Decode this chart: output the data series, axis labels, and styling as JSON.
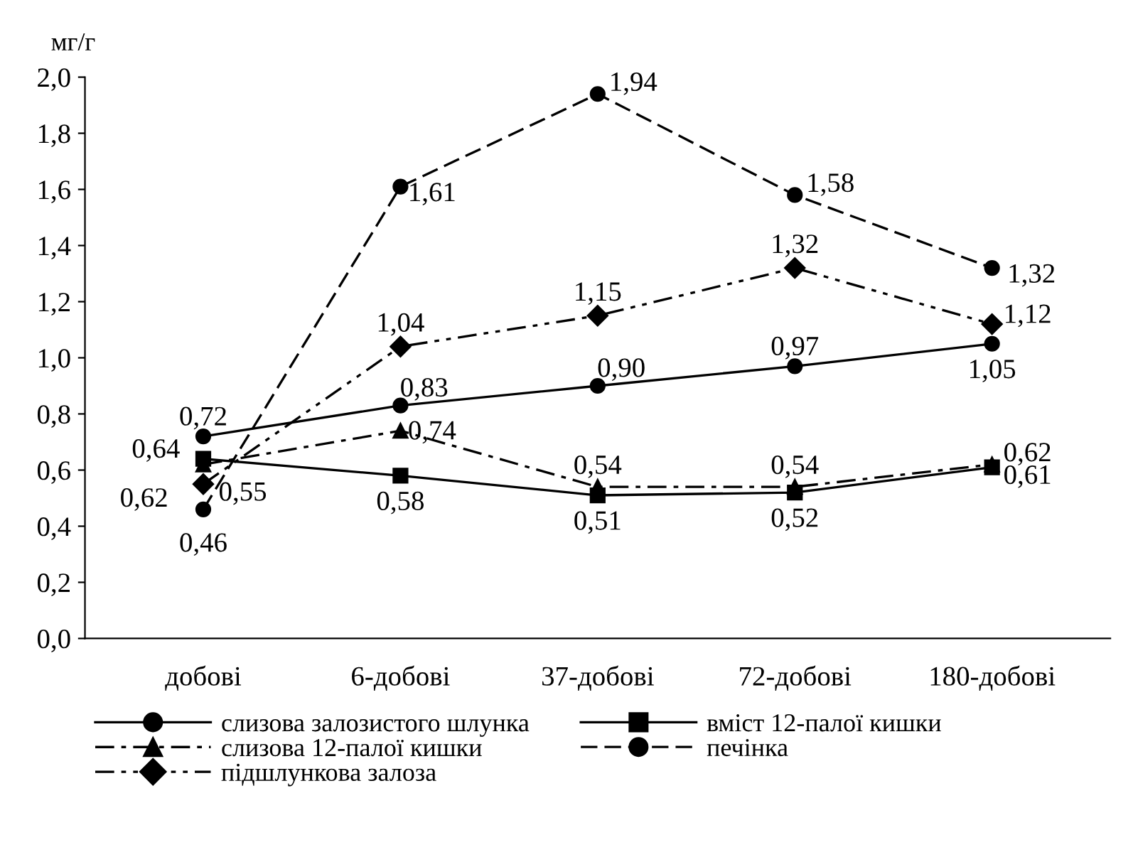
{
  "chart_data": {
    "type": "line",
    "ylabel": "мг/г",
    "categories": [
      "добові",
      "6-добові",
      "37-добові",
      "72-добові",
      "180-добові"
    ],
    "ylim": [
      0,
      2.0
    ],
    "yticks": [
      {
        "value": 0,
        "label": "0,0"
      },
      {
        "value": 0.2,
        "label": "0,2"
      },
      {
        "value": 0.4,
        "label": "0,4"
      },
      {
        "value": 0.6,
        "label": "0,6"
      },
      {
        "value": 0.8,
        "label": "0,8"
      },
      {
        "value": 1.0,
        "label": "1,0"
      },
      {
        "value": 1.2,
        "label": "1,2"
      },
      {
        "value": 1.4,
        "label": "1,4"
      },
      {
        "value": 1.6,
        "label": "1,6"
      },
      {
        "value": 1.8,
        "label": "1,8"
      },
      {
        "value": 2.0,
        "label": "2,0"
      }
    ],
    "grid": false,
    "legend": "bottom",
    "series": [
      {
        "name": "слизова залозистого шлунка",
        "color": "#000000",
        "marker": "circle",
        "line_style": "solid",
        "values": [
          0.72,
          0.83,
          0.9,
          0.97,
          1.05
        ],
        "value_labels": [
          "0,72",
          "0,83",
          "0,90",
          "0,97",
          "1,05"
        ]
      },
      {
        "name": "вміст 12-палої кишки",
        "color": "#000000",
        "marker": "square",
        "line_style": "solid",
        "values": [
          0.64,
          0.58,
          0.51,
          0.52,
          0.61
        ],
        "value_labels": [
          "0,64",
          "0,58",
          "0,51",
          "0,52",
          "0,61"
        ]
      },
      {
        "name": "слизова 12-палої кишки",
        "color": "#000000",
        "marker": "triangle",
        "line_style": "dashdot",
        "values": [
          0.62,
          0.74,
          0.54,
          0.54,
          0.62
        ],
        "value_labels": [
          "0,62",
          "0,74",
          "0,54",
          "0,54",
          "0,62"
        ]
      },
      {
        "name": "печінка",
        "color": "#000000",
        "marker": "circle",
        "line_style": "dashed",
        "values": [
          0.46,
          1.61,
          1.94,
          1.58,
          1.32
        ],
        "value_labels": [
          "0,46",
          "1,61",
          "1,94",
          "1,58",
          "1,32"
        ]
      },
      {
        "name": "підшлункова залоза",
        "color": "#000000",
        "marker": "diamond",
        "line_style": "dashdotdot",
        "values": [
          0.55,
          1.04,
          1.15,
          1.32,
          1.12
        ],
        "value_labels": [
          "0,55",
          "1,04",
          "1,15",
          "1,32",
          "1,12"
        ]
      }
    ]
  }
}
